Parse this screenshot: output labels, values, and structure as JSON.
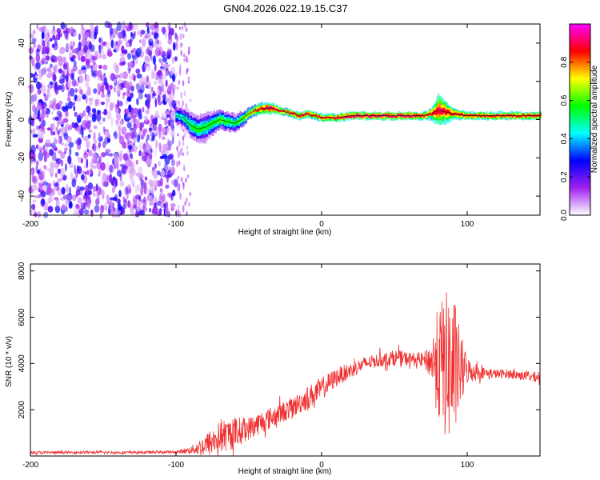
{
  "title": "GN04.2026.022.19.15.C37",
  "chart_data": [
    {
      "type": "heatmap",
      "title": "GN04.2026.022.19.15.C37",
      "xlabel": "Height of straight line (km)",
      "ylabel": "Frequency (Hz)",
      "xlim": [
        -200,
        150
      ],
      "ylim": [
        -50,
        50
      ],
      "x_ticks": [
        -200,
        -100,
        0,
        100
      ],
      "y_ticks": [
        -40,
        -20,
        0,
        20,
        40
      ],
      "colorbar": {
        "label": "Normalized spectral amplitude",
        "range": [
          0,
          1
        ],
        "ticks": [
          0,
          0.2,
          0.4,
          0.6,
          0.8
        ],
        "tick_labels": [
          "0.0",
          "0.2",
          "0.4",
          "0.6",
          "0.8"
        ],
        "colors": [
          "#ffffff",
          "#a020f0",
          "#0000ff",
          "#00ffff",
          "#00ff00",
          "#ffff00",
          "#ff0000",
          "#ff00ff"
        ]
      },
      "noise_region": {
        "x_range": [
          -200,
          -100
        ],
        "y_range": [
          -50,
          50
        ],
        "sparse_tail_to": -90
      },
      "signal_track": {
        "x": [
          -100,
          -95,
          -90,
          -85,
          -80,
          -75,
          -70,
          -65,
          -60,
          -55,
          -50,
          -45,
          -40,
          -35,
          -30,
          -25,
          -20,
          -15,
          -10,
          -5,
          0,
          10,
          20,
          30,
          40,
          50,
          60,
          70,
          75,
          80,
          85,
          90,
          100,
          110,
          120,
          130,
          140,
          150
        ],
        "y": [
          2,
          1,
          -3,
          -5,
          -4,
          -2,
          0,
          -1,
          -2,
          0,
          3,
          5,
          6,
          6,
          5,
          4,
          3,
          2,
          3,
          2,
          1,
          1,
          2,
          2,
          2,
          2,
          2,
          2,
          3,
          5,
          4,
          3,
          2,
          2,
          2,
          2,
          2,
          2
        ],
        "amplitude": [
          0.4,
          0.45,
          0.5,
          0.55,
          0.5,
          0.55,
          0.6,
          0.55,
          0.5,
          0.6,
          0.7,
          0.8,
          0.85,
          0.9,
          0.85,
          0.8,
          0.85,
          0.85,
          0.85,
          0.8,
          0.85,
          0.85,
          0.9,
          0.9,
          0.9,
          0.9,
          0.9,
          0.85,
          0.8,
          0.9,
          0.85,
          0.85,
          0.85,
          0.85,
          0.85,
          0.85,
          0.85,
          0.85
        ],
        "spread_hz": [
          6,
          6,
          7,
          7,
          8,
          6,
          5,
          5,
          5,
          4,
          3,
          3,
          3,
          3,
          2,
          2,
          2,
          2,
          2,
          2,
          2,
          2,
          2,
          2,
          2,
          2,
          2,
          2,
          3,
          8,
          6,
          3,
          2,
          2,
          2,
          2,
          2,
          2
        ]
      }
    },
    {
      "type": "line",
      "xlabel": "Height of straight line (km)",
      "ylabel": "SNR (10 * v/v)",
      "xlim": [
        -200,
        150
      ],
      "ylim": [
        0,
        8300
      ],
      "x_ticks": [
        -200,
        -100,
        0,
        100
      ],
      "y_ticks": [
        2000,
        4000,
        6000,
        8000
      ],
      "color": "#f03030",
      "series": [
        {
          "name": "SNR",
          "x": [
            -200,
            -180,
            -160,
            -140,
            -120,
            -100,
            -90,
            -80,
            -70,
            -60,
            -50,
            -40,
            -30,
            -20,
            -10,
            0,
            10,
            20,
            30,
            40,
            50,
            60,
            70,
            75,
            80,
            85,
            90,
            95,
            100,
            110,
            120,
            130,
            140,
            150
          ],
          "y": [
            150,
            150,
            160,
            150,
            160,
            170,
            250,
            450,
            800,
            1000,
            1200,
            1500,
            1800,
            2100,
            2500,
            2900,
            3400,
            3700,
            4000,
            4150,
            4250,
            4200,
            4150,
            4100,
            4000,
            3900,
            3800,
            3700,
            3700,
            3600,
            3550,
            3550,
            3450,
            3400
          ],
          "noise_amp": [
            60,
            60,
            60,
            60,
            60,
            60,
            150,
            500,
            700,
            700,
            500,
            500,
            450,
            450,
            500,
            500,
            400,
            350,
            300,
            300,
            350,
            300,
            300,
            800,
            2500,
            3200,
            3500,
            1800,
            600,
            250,
            200,
            200,
            200,
            200
          ]
        }
      ]
    }
  ]
}
